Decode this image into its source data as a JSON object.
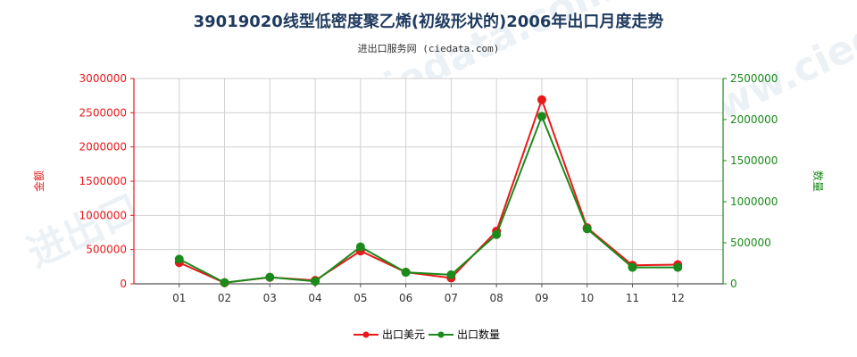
{
  "chart_data": {
    "type": "line",
    "title": "39019020线型低密度聚乙烯(初级形状的)2006年出口月度走势",
    "subtitle": "进出口服务网 (ciedata.com)",
    "watermark": "进出口服务网 www.ciedata.com",
    "categories": [
      "01",
      "02",
      "03",
      "04",
      "05",
      "06",
      "07",
      "08",
      "09",
      "10",
      "11",
      "12"
    ],
    "y_left": {
      "label": "金额",
      "ylim": [
        0,
        3000000
      ],
      "ticks": [
        "0",
        "500000",
        "1000000",
        "1500000",
        "2000000",
        "2500000",
        "3000000"
      ],
      "color": "#e8191b"
    },
    "y_right": {
      "label": "数量",
      "ylim": [
        0,
        2500000
      ],
      "ticks": [
        "0",
        "500000",
        "1000000",
        "1500000",
        "2000000",
        "2500000"
      ],
      "color": "#1a8a1a"
    },
    "series": [
      {
        "name": "出口美元",
        "axis": "left",
        "color": "#e8191b",
        "values": [
          310000,
          15000,
          95000,
          50000,
          480000,
          170000,
          85000,
          770000,
          2690000,
          820000,
          270000,
          280000
        ]
      },
      {
        "name": "出口数量",
        "axis": "right",
        "color": "#1a8a1a",
        "values": [
          300000,
          15000,
          80000,
          30000,
          450000,
          140000,
          110000,
          600000,
          2040000,
          670000,
          200000,
          200000
        ]
      }
    ],
    "grid": true,
    "legend_position": "bottom-center"
  }
}
